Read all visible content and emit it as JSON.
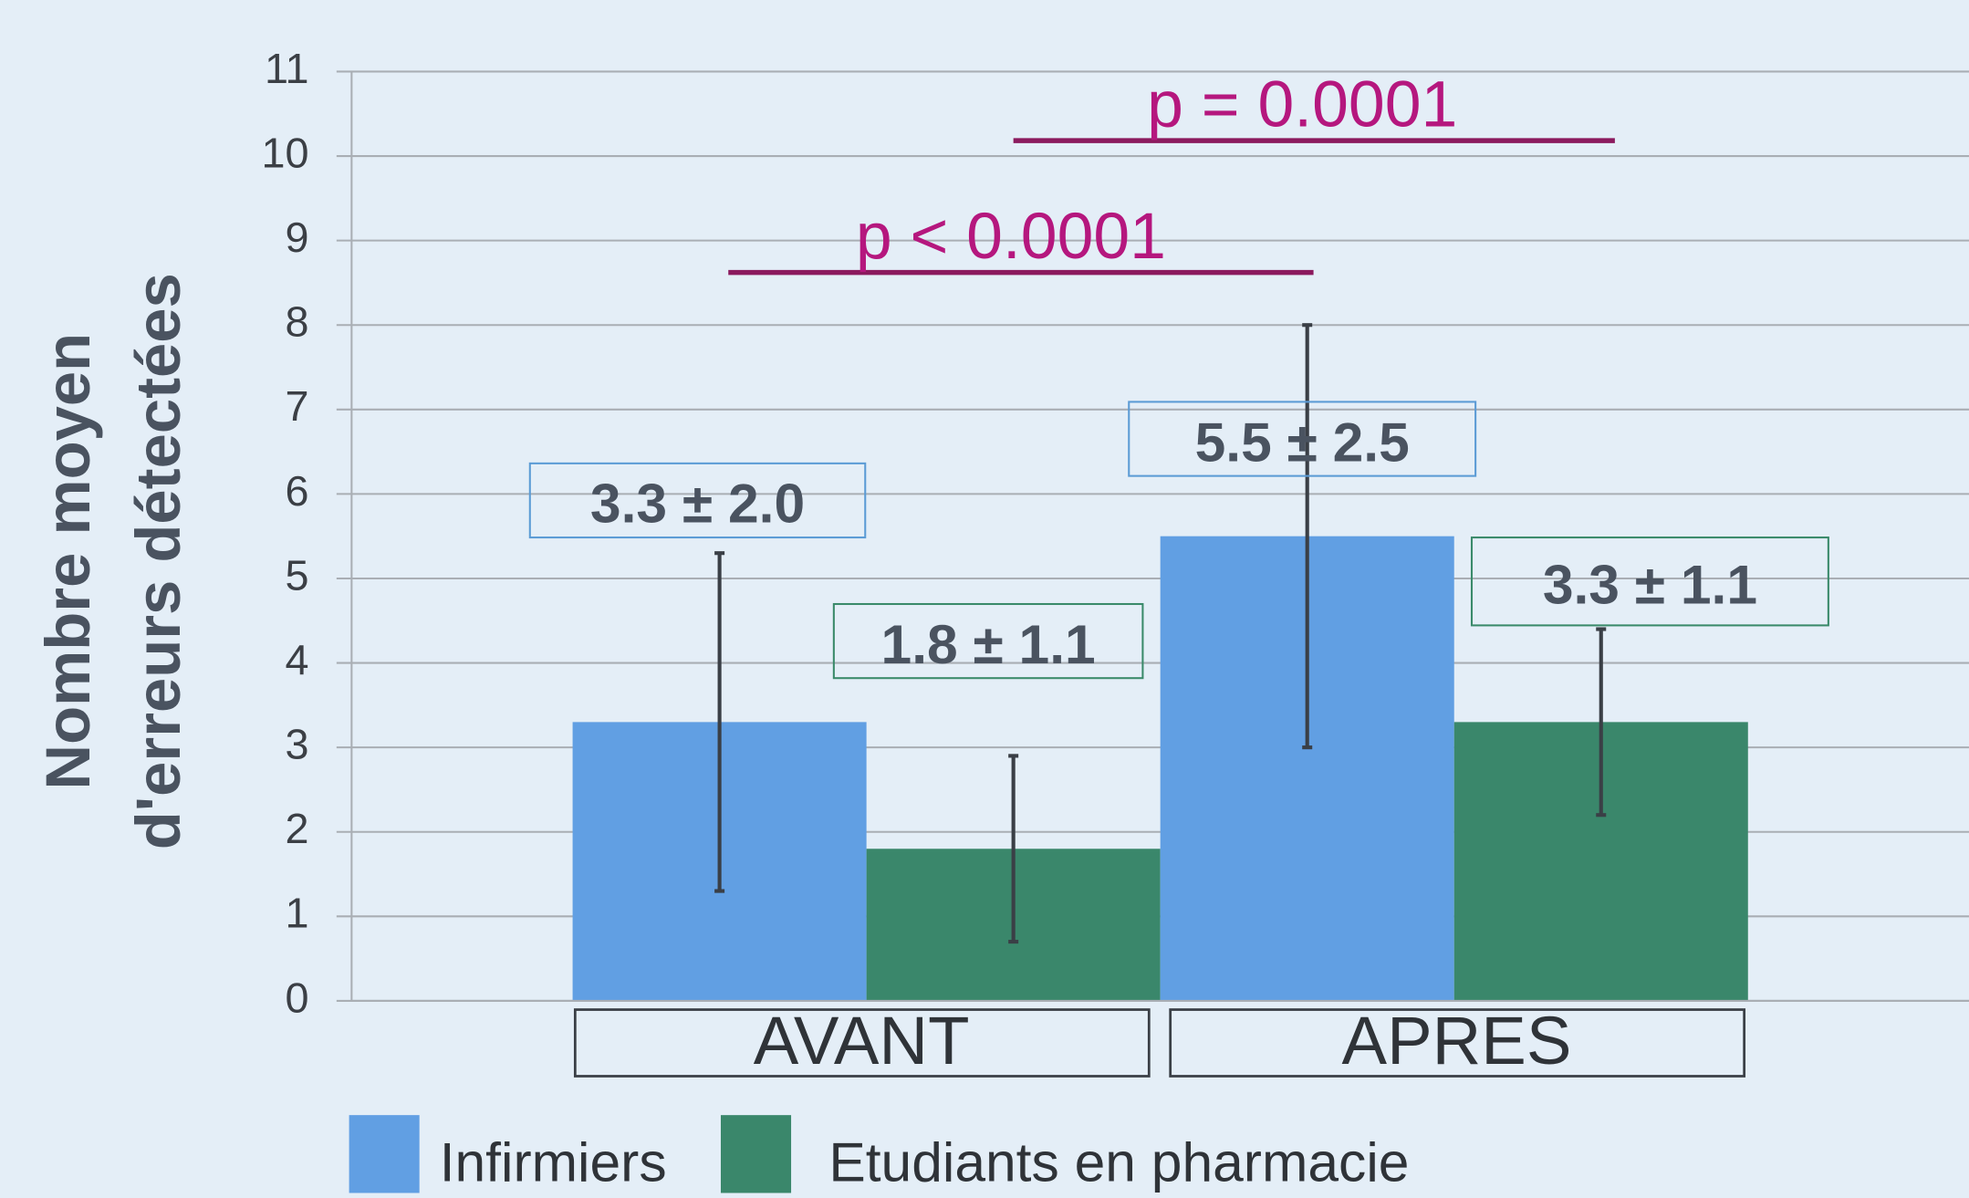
{
  "chart_data": {
    "type": "bar",
    "ylabel": [
      "Nombre moyen",
      "d'erreurs détectées"
    ],
    "categories": [
      "AVANT",
      "APRES"
    ],
    "series": [
      {
        "name": "Infirmiers",
        "color": "#619fe3",
        "values": [
          3.3,
          5.5
        ],
        "errors": [
          2.0,
          2.5
        ],
        "value_labels": [
          "3.3 ± 2.0",
          "5.5 ± 2.5"
        ]
      },
      {
        "name": "Etudiants en pharmacie",
        "color": "#3a876b",
        "values": [
          1.8,
          3.3
        ],
        "errors": [
          1.1,
          1.1
        ],
        "value_labels": [
          "1.8 ± 1.1",
          "3.3 ± 1.1"
        ]
      }
    ],
    "ylim": [
      0,
      11
    ],
    "yticks": [
      0,
      1,
      2,
      3,
      4,
      5,
      6,
      7,
      8,
      9,
      10,
      11
    ],
    "grid": true,
    "annotations": [
      "p < 0.0001",
      "p = 0.0001"
    ]
  }
}
